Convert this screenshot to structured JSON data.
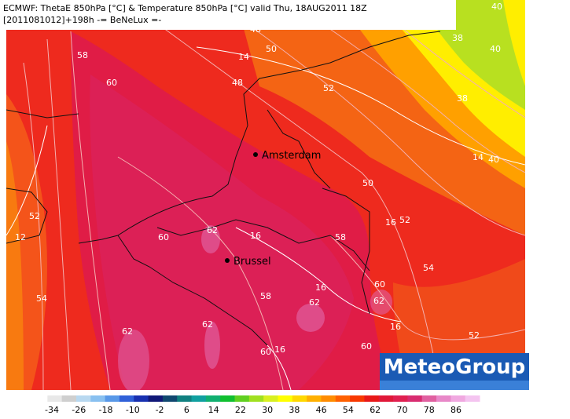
{
  "header": {
    "line1": "ECMWF: ThetaE 850hPa [°C] & Temperature 850hPa [°C] valid Thu, 18AUG2011 18Z",
    "line2": "[2011081012]+198h -= BeNeLux =-"
  },
  "cities": [
    "Amsterdam",
    "Brussel"
  ],
  "contour_labels": [
    58,
    14,
    50,
    48,
    40,
    38,
    40,
    38,
    60,
    48,
    52,
    14,
    40,
    50,
    52,
    12,
    16,
    52,
    62,
    16,
    60,
    58,
    54,
    54,
    58,
    16,
    60,
    62,
    62,
    16,
    62,
    62,
    52,
    60,
    16,
    60
  ],
  "colorbar": {
    "ticks": [
      -34,
      -26,
      -18,
      -10,
      -2,
      6,
      14,
      22,
      30,
      38,
      46,
      54,
      62,
      70,
      78,
      86
    ],
    "colors": [
      "#ffffff",
      "#e8e8e8",
      "#cfcfcf",
      "#b8d8f0",
      "#88c0f0",
      "#5898e8",
      "#3060d8",
      "#1830b0",
      "#101878",
      "#104870",
      "#108080",
      "#10a0a0",
      "#10b070",
      "#10c030",
      "#60d020",
      "#a0e020",
      "#d8f020",
      "#ffff00",
      "#ffd800",
      "#ffb000",
      "#ff8c00",
      "#ff6000",
      "#f83800",
      "#e81818",
      "#e01838",
      "#e02050",
      "#d82c70",
      "#e060a0",
      "#e888c8",
      "#f0a8e0",
      "#f4c4f0"
    ]
  },
  "logo": "MeteoGroup"
}
